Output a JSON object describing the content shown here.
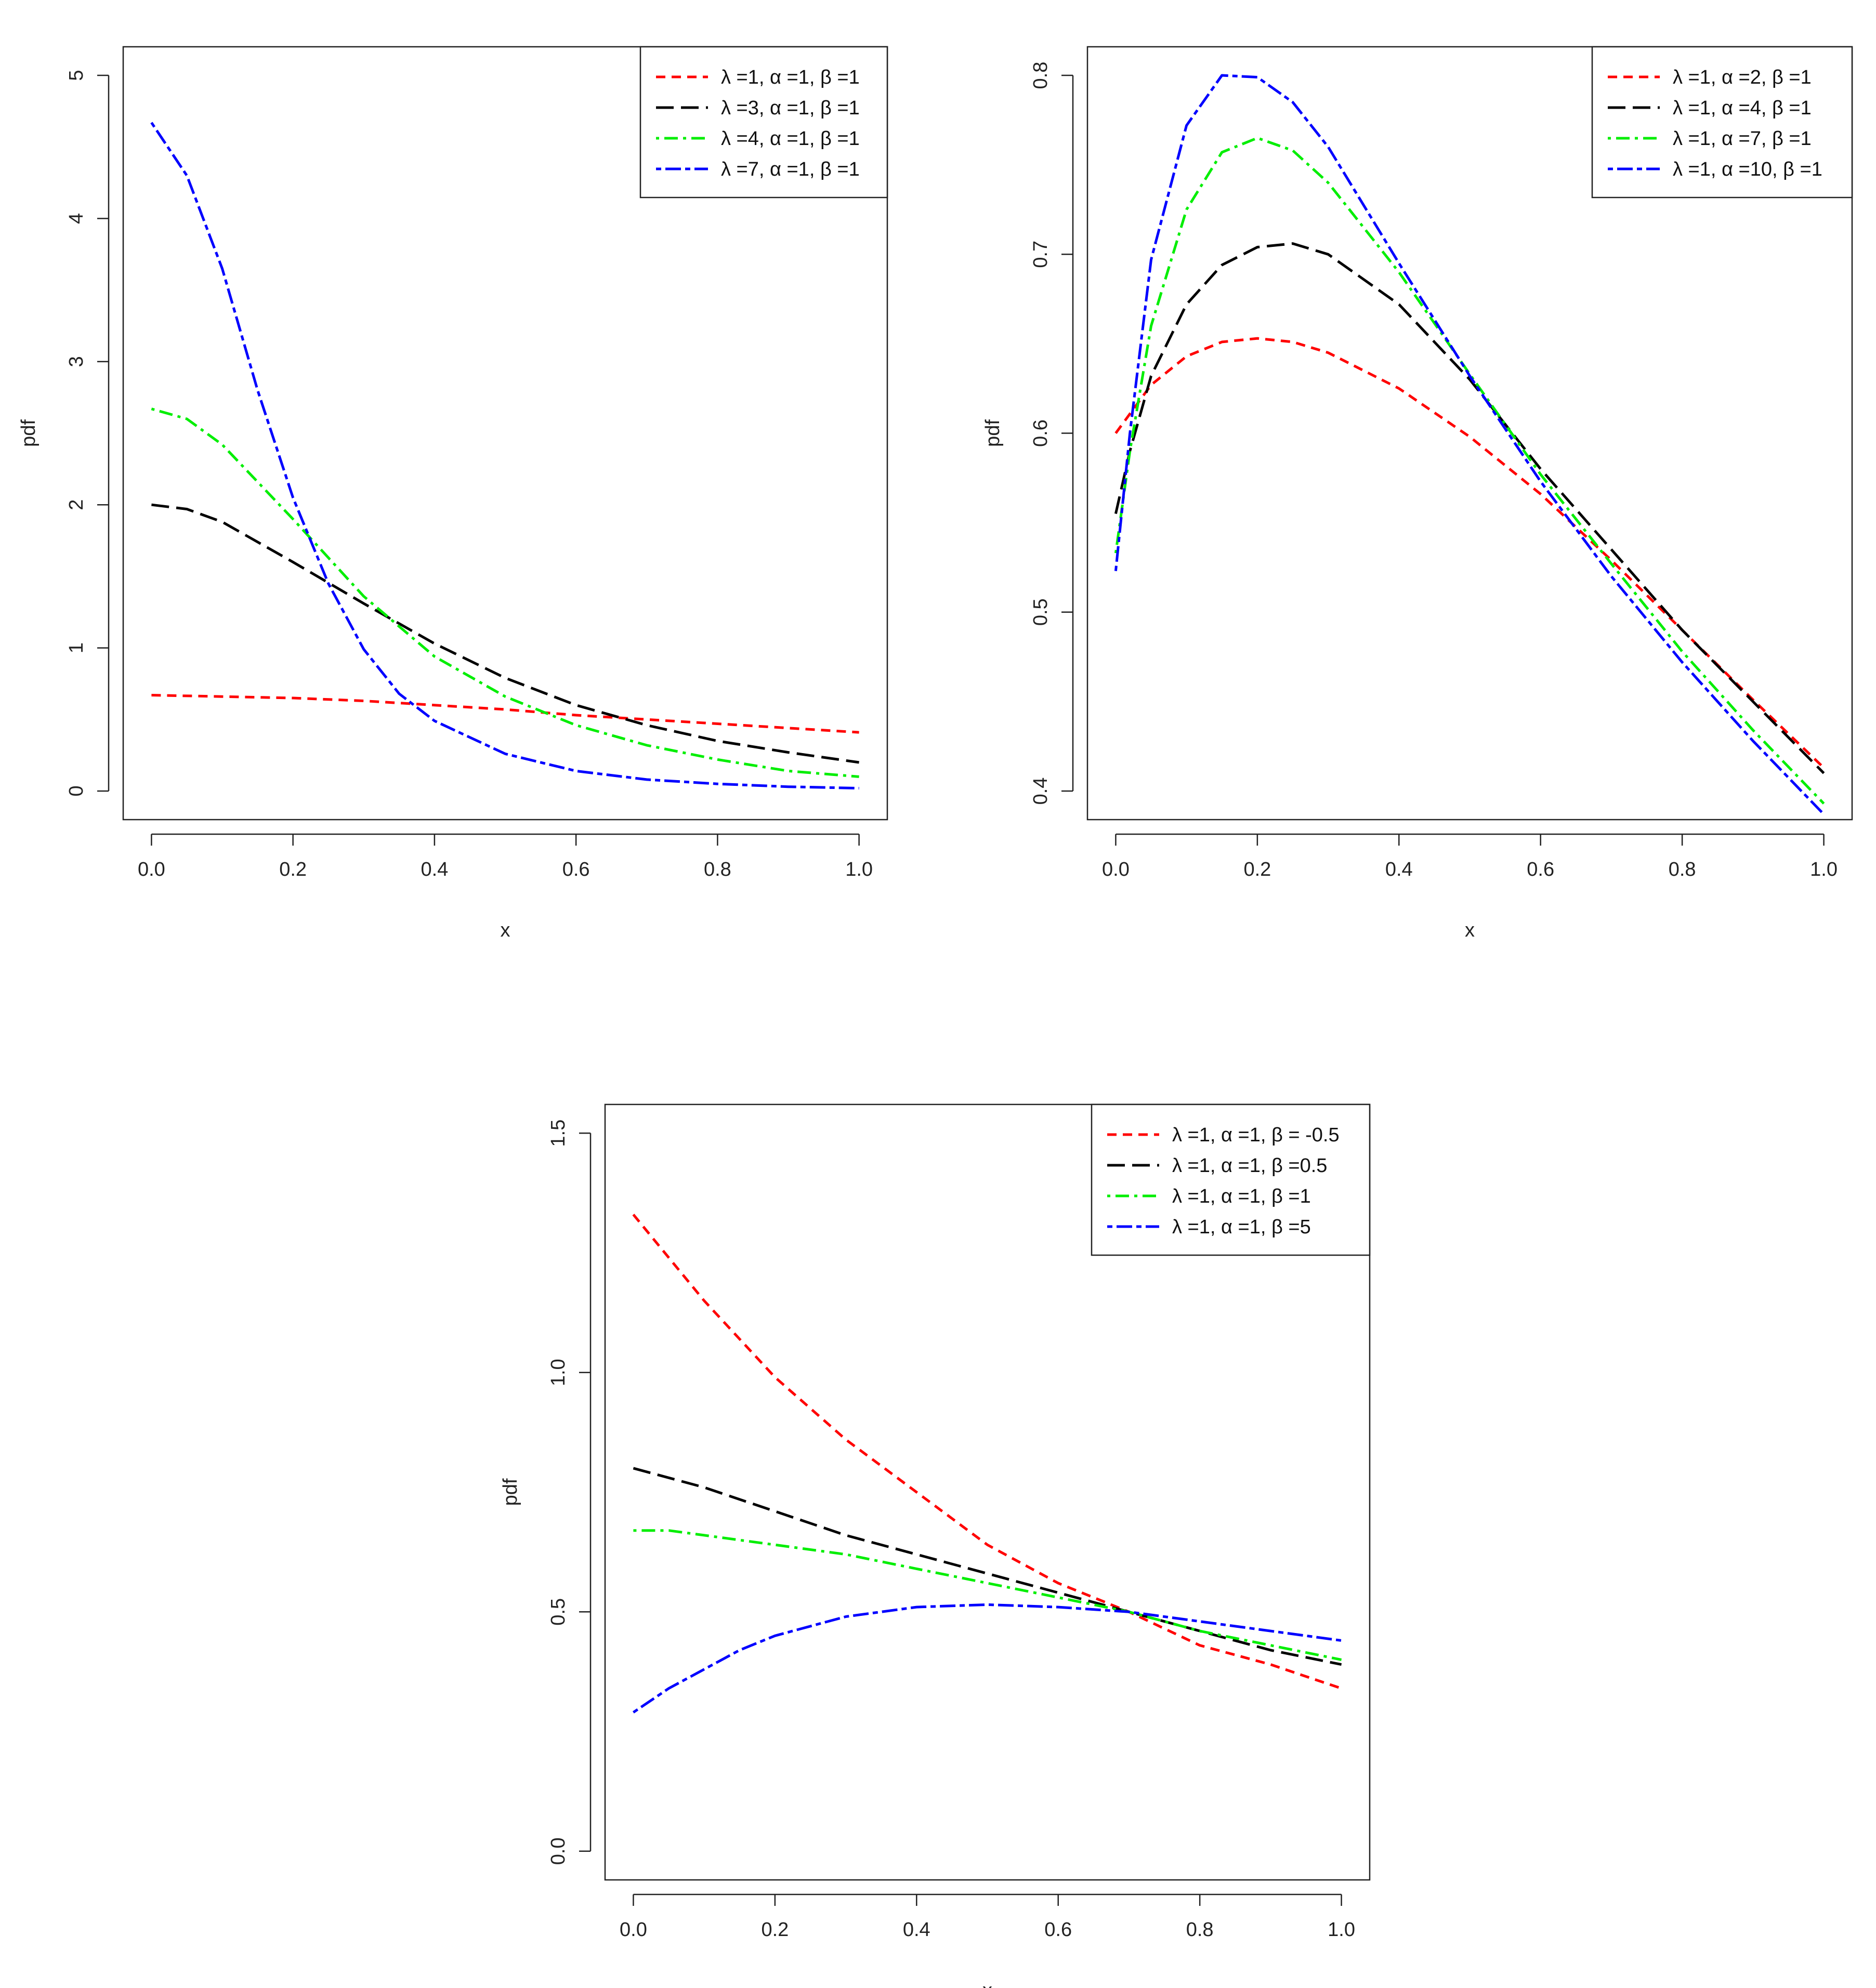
{
  "chart_data": [
    {
      "type": "line",
      "title": "",
      "xlabel": "x",
      "ylabel": "pdf",
      "xlim": [
        0,
        1
      ],
      "ylim": [
        0,
        5
      ],
      "xticks": [
        "0.0",
        "0.2",
        "0.4",
        "0.6",
        "0.8",
        "1.0"
      ],
      "yticks": [
        "0",
        "1",
        "2",
        "3",
        "4",
        "5"
      ],
      "legend_position": "top-right",
      "series": [
        {
          "name": "λ =1, α =1, β =1",
          "color": "#ff0000",
          "dash": "dashed",
          "x": [
            0,
            0.1,
            0.2,
            0.3,
            0.4,
            0.5,
            0.6,
            0.7,
            0.8,
            0.9,
            1.0
          ],
          "y": [
            0.67,
            0.66,
            0.65,
            0.63,
            0.6,
            0.57,
            0.53,
            0.5,
            0.47,
            0.44,
            0.41
          ]
        },
        {
          "name": "λ =3, α =1, β =1",
          "color": "#000000",
          "dash": "longdash",
          "x": [
            0,
            0.05,
            0.1,
            0.2,
            0.3,
            0.4,
            0.5,
            0.6,
            0.7,
            0.8,
            0.9,
            1.0
          ],
          "y": [
            2.0,
            1.97,
            1.88,
            1.6,
            1.31,
            1.03,
            0.79,
            0.6,
            0.46,
            0.35,
            0.27,
            0.2
          ]
        },
        {
          "name": "λ =4, α =1, β =1",
          "color": "#00ee00",
          "dash": "dotdash",
          "x": [
            0,
            0.05,
            0.1,
            0.2,
            0.3,
            0.4,
            0.5,
            0.6,
            0.7,
            0.8,
            0.9,
            1.0
          ],
          "y": [
            2.67,
            2.6,
            2.42,
            1.9,
            1.36,
            0.94,
            0.66,
            0.46,
            0.32,
            0.22,
            0.14,
            0.1
          ]
        },
        {
          "name": "λ =7, α =1, β =1",
          "color": "#0000ff",
          "dash": "twodash",
          "x": [
            0,
            0.05,
            0.1,
            0.15,
            0.2,
            0.25,
            0.3,
            0.35,
            0.4,
            0.5,
            0.6,
            0.7,
            0.8,
            0.9,
            1.0
          ],
          "y": [
            4.67,
            4.3,
            3.65,
            2.8,
            2.05,
            1.45,
            0.99,
            0.68,
            0.49,
            0.26,
            0.14,
            0.08,
            0.05,
            0.03,
            0.02
          ]
        }
      ]
    },
    {
      "type": "line",
      "title": "",
      "xlabel": "x",
      "ylabel": "pdf",
      "xlim": [
        0,
        1
      ],
      "ylim": [
        0.4,
        0.8
      ],
      "xticks": [
        "0.0",
        "0.2",
        "0.4",
        "0.6",
        "0.8",
        "1.0"
      ],
      "yticks": [
        "0.4",
        "0.5",
        "0.6",
        "0.7",
        "0.8"
      ],
      "legend_position": "top-right",
      "series": [
        {
          "name": "λ =1, α =2, β =1",
          "color": "#ff0000",
          "dash": "dashed",
          "x": [
            0,
            0.05,
            0.1,
            0.15,
            0.2,
            0.25,
            0.3,
            0.4,
            0.5,
            0.6,
            0.7,
            0.8,
            0.9,
            1.0
          ],
          "y": [
            0.6,
            0.627,
            0.643,
            0.651,
            0.653,
            0.651,
            0.645,
            0.625,
            0.598,
            0.566,
            0.529,
            0.49,
            0.451,
            0.413
          ]
        },
        {
          "name": "λ =1, α =4, β =1",
          "color": "#000000",
          "dash": "longdash",
          "x": [
            0,
            0.02,
            0.05,
            0.1,
            0.15,
            0.2,
            0.25,
            0.3,
            0.4,
            0.5,
            0.6,
            0.7,
            0.8,
            0.9,
            1.0
          ],
          "y": [
            0.555,
            0.59,
            0.632,
            0.672,
            0.694,
            0.704,
            0.706,
            0.7,
            0.672,
            0.63,
            0.58,
            0.535,
            0.49,
            0.45,
            0.41
          ]
        },
        {
          "name": "λ =1, α =7, β =1",
          "color": "#00ee00",
          "dash": "dotdash",
          "x": [
            0,
            0.02,
            0.05,
            0.1,
            0.15,
            0.2,
            0.25,
            0.3,
            0.4,
            0.5,
            0.6,
            0.7,
            0.8,
            0.9,
            1.0
          ],
          "y": [
            0.533,
            0.59,
            0.66,
            0.725,
            0.757,
            0.765,
            0.758,
            0.74,
            0.69,
            0.633,
            0.577,
            0.527,
            0.478,
            0.434,
            0.393
          ]
        },
        {
          "name": "λ =1, α =10, β =1",
          "color": "#0000ff",
          "dash": "twodash",
          "x": [
            0,
            0.02,
            0.05,
            0.1,
            0.15,
            0.2,
            0.25,
            0.3,
            0.4,
            0.5,
            0.6,
            0.7,
            0.8,
            0.9,
            1.0
          ],
          "y": [
            0.523,
            0.6,
            0.697,
            0.772,
            0.8,
            0.799,
            0.785,
            0.76,
            0.695,
            0.632,
            0.573,
            0.52,
            0.472,
            0.428,
            0.387
          ]
        }
      ]
    },
    {
      "type": "line",
      "title": "",
      "xlabel": "x",
      "ylabel": "pdf",
      "xlim": [
        0,
        1
      ],
      "ylim": [
        0,
        1.5
      ],
      "xticks": [
        "0.0",
        "0.2",
        "0.4",
        "0.6",
        "0.8",
        "1.0"
      ],
      "yticks": [
        "0.0",
        "0.5",
        "1.0",
        "1.5"
      ],
      "legend_position": "top-right",
      "series": [
        {
          "name": "λ =1, α =1, β = -0.5",
          "color": "#ff0000",
          "dash": "dashed",
          "x": [
            0,
            0.1,
            0.2,
            0.3,
            0.4,
            0.5,
            0.6,
            0.7,
            0.8,
            0.9,
            1.0
          ],
          "y": [
            1.33,
            1.15,
            0.99,
            0.86,
            0.75,
            0.64,
            0.56,
            0.5,
            0.43,
            0.39,
            0.34
          ]
        },
        {
          "name": "λ =1, α =1, β =0.5",
          "color": "#000000",
          "dash": "longdash",
          "x": [
            0,
            0.1,
            0.2,
            0.3,
            0.4,
            0.5,
            0.6,
            0.7,
            0.8,
            0.9,
            1.0
          ],
          "y": [
            0.8,
            0.76,
            0.71,
            0.66,
            0.62,
            0.58,
            0.54,
            0.5,
            0.46,
            0.42,
            0.39
          ]
        },
        {
          "name": "λ =1, α =1, β =1",
          "color": "#00ee00",
          "dash": "dotdash",
          "x": [
            0,
            0.05,
            0.1,
            0.2,
            0.3,
            0.4,
            0.5,
            0.6,
            0.7,
            0.8,
            0.9,
            1.0
          ],
          "y": [
            0.67,
            0.67,
            0.66,
            0.64,
            0.62,
            0.59,
            0.56,
            0.53,
            0.5,
            0.46,
            0.43,
            0.4
          ]
        },
        {
          "name": "λ =1, α =1, β =5",
          "color": "#0000ff",
          "dash": "twodash",
          "x": [
            0,
            0.05,
            0.1,
            0.15,
            0.2,
            0.3,
            0.4,
            0.5,
            0.6,
            0.7,
            0.8,
            0.9,
            1.0
          ],
          "y": [
            0.29,
            0.34,
            0.38,
            0.42,
            0.45,
            0.49,
            0.51,
            0.515,
            0.51,
            0.5,
            0.48,
            0.46,
            0.44
          ]
        }
      ]
    }
  ]
}
